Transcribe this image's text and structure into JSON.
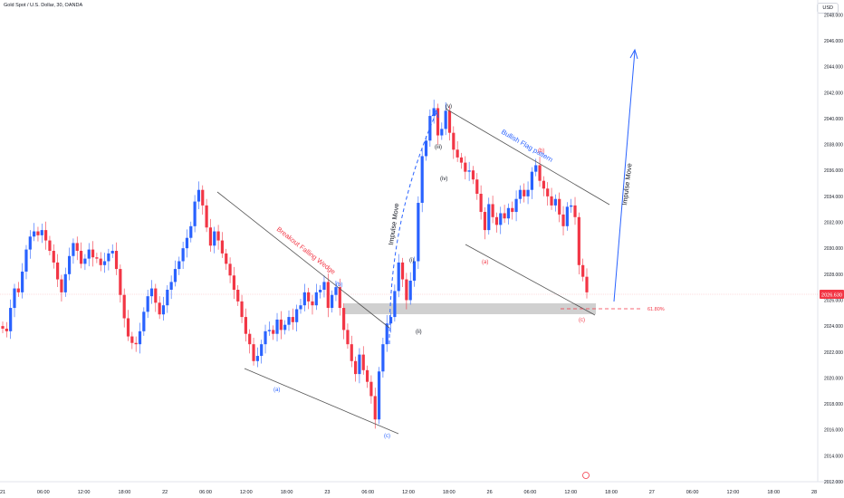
{
  "header": {
    "title": "Gold Spot / U.S. Dollar, 30, OANDA",
    "currency_button": "USD"
  },
  "colors": {
    "up": "#2962ff",
    "down": "#f23645",
    "trendline": "#555555",
    "zone": "#c8c8c8",
    "arrow": "#2962ff"
  },
  "price_tag": "2026.630",
  "fib_label": "61.80%",
  "chart_data": {
    "type": "candlestick",
    "title": "Gold Spot / U.S. Dollar, 30, OANDA",
    "ylim": [
      2012,
      2049
    ],
    "y_ticks": [
      "2048.000",
      "2046.000",
      "2044.000",
      "2042.000",
      "2040.000",
      "2038.000",
      "2036.000",
      "2034.000",
      "2032.000",
      "2030.000",
      "2028.000",
      "2026.000",
      "2024.000",
      "2022.000",
      "2020.000",
      "2018.000",
      "2016.000",
      "2014.000",
      "2012.000"
    ],
    "x_ticks": [
      "21",
      "06:00",
      "12:00",
      "18:00",
      "22",
      "06:00",
      "12:00",
      "18:00",
      "23",
      "06:00",
      "12:00",
      "18:00",
      "26",
      "06:00",
      "12:00",
      "18:00",
      "27",
      "06:00",
      "12:00",
      "18:00",
      "28"
    ],
    "last_price": 2026.63,
    "annotations": {
      "wedge_label": "Breakout Falling Wedge",
      "flag_label": "Bullish Flag pattern",
      "impulse_label_1": "Impulse Move",
      "impulse_label_2": "Impulse Move",
      "waves": [
        "(a)",
        "(c)",
        "(i)",
        "(ii)",
        "(iii)",
        "(iv)",
        "(v)",
        "(a)",
        "(b)",
        "(c)",
        "(b)"
      ],
      "fib": "61.80%"
    },
    "closes": [
      2023.8,
      2023.6,
      2025.4,
      2026.9,
      2026.6,
      2028.2,
      2029.9,
      2030.9,
      2031.3,
      2031.0,
      2031.4,
      2030.6,
      2029.8,
      2028.9,
      2027.6,
      2026.6,
      2028.0,
      2029.4,
      2030.4,
      2029.8,
      2028.8,
      2029.2,
      2029.9,
      2029.3,
      2029.2,
      2028.7,
      2029.0,
      2029.6,
      2029.8,
      2028.4,
      2026.4,
      2024.6,
      2023.2,
      2022.7,
      2022.6,
      2023.6,
      2025.1,
      2026.3,
      2026.9,
      2025.8,
      2024.9,
      2025.6,
      2026.8,
      2027.4,
      2028.4,
      2029.0,
      2030.0,
      2030.8,
      2031.7,
      2033.6,
      2034.5,
      2033.3,
      2031.6,
      2030.2,
      2031.3,
      2030.6,
      2029.6,
      2028.8,
      2027.9,
      2026.8,
      2025.9,
      2024.7,
      2023.4,
      2022.6,
      2021.3,
      2021.7,
      2022.6,
      2023.6,
      2023.7,
      2023.4,
      2024.5,
      2023.7,
      2024.1,
      2024.7,
      2024.3,
      2025.3,
      2025.6,
      2026.6,
      2025.9,
      2025.6,
      2026.6,
      2026.8,
      2027.4,
      2025.4,
      2026.4,
      2027.0,
      2025.4,
      2023.7,
      2022.6,
      2021.3,
      2020.3,
      2021.8,
      2020.6,
      2019.7,
      2018.6,
      2016.8,
      2020.5,
      2022.6,
      2024.2,
      2024.7,
      2026.7,
      2028.9,
      2027.6,
      2026.0,
      2027.5,
      2029.0,
      2033.5,
      2037.1,
      2038.3,
      2040.2,
      2040.8,
      2038.7,
      2039.2,
      2040.6,
      2038.9,
      2037.6,
      2037.0,
      2036.6,
      2035.9,
      2036.0,
      2035.3,
      2034.2,
      2032.8,
      2031.4,
      2033.4,
      2032.4,
      2031.8,
      2032.7,
      2032.3,
      2033.1,
      2032.8,
      2033.8,
      2034.5,
      2034.0,
      2034.5,
      2035.9,
      2036.4,
      2035.2,
      2034.6,
      2034.0,
      2033.3,
      2033.8,
      2032.6,
      2031.7,
      2033.2,
      2033.3,
      2032.4,
      2028.7,
      2027.8,
      2026.6
    ]
  }
}
